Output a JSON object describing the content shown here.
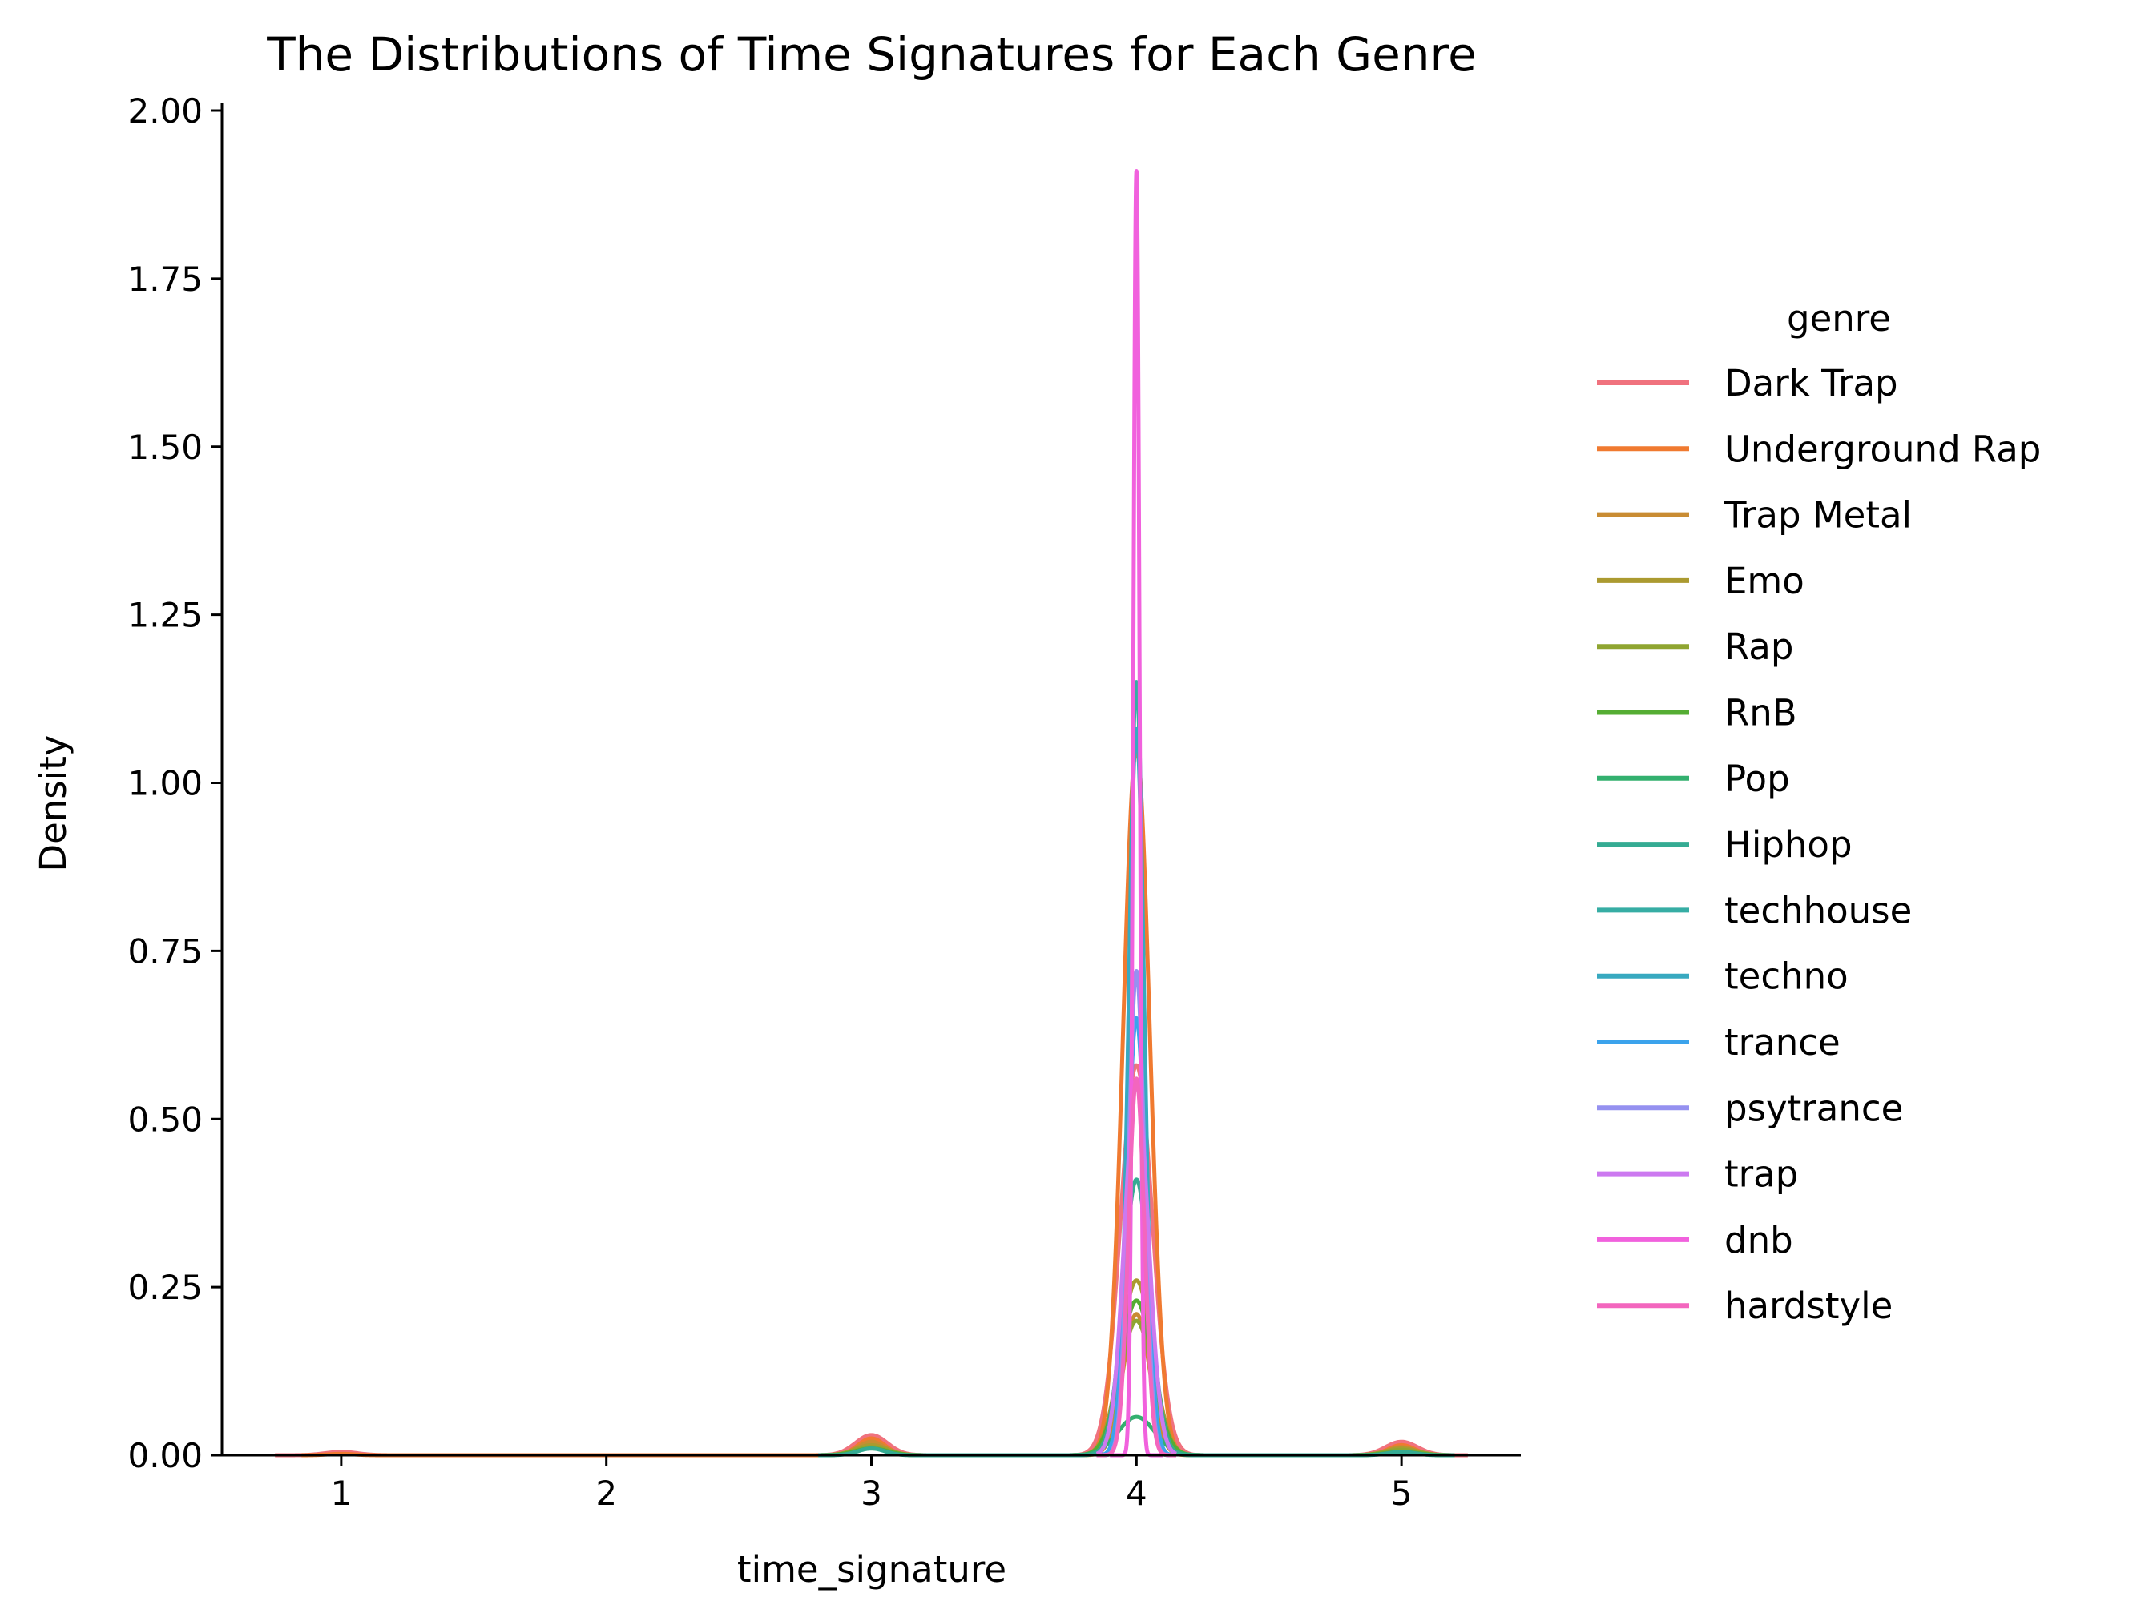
{
  "chart_data": {
    "type": "line",
    "title": "The Distributions of Time Signatures for Each Genre",
    "xlabel": "time_signature",
    "ylabel": "Density",
    "xlim": [
      0.55,
      5.45
    ],
    "ylim": [
      0,
      2.0
    ],
    "xticks": [
      1,
      2,
      3,
      4,
      5
    ],
    "xtick_labels": [
      "1",
      "2",
      "3",
      "4",
      "5"
    ],
    "yticks": [
      0,
      0.25,
      0.5,
      0.75,
      1.0,
      1.25,
      1.5,
      1.75,
      2.0
    ],
    "ytick_labels": [
      "0.00",
      "0.25",
      "0.50",
      "0.75",
      "1.00",
      "1.25",
      "1.50",
      "1.75",
      "2.00"
    ],
    "grid": false,
    "legend": {
      "title": "genre",
      "placement": "right"
    },
    "series": [
      {
        "name": "Dark Trap",
        "color": "#f0727e",
        "range": [
          0.75,
          5.25
        ],
        "peaks": [
          [
            1,
            0.005,
            0.06
          ],
          [
            3,
            0.03,
            0.06
          ],
          [
            4,
            0.58,
            0.06
          ],
          [
            5,
            0.02,
            0.06
          ]
        ]
      },
      {
        "name": "Underground Rap",
        "color": "#f07a30",
        "range": [
          0.85,
          5.2
        ],
        "peaks": [
          [
            1,
            0.002,
            0.05
          ],
          [
            3,
            0.025,
            0.05
          ],
          [
            4,
            1.05,
            0.05
          ],
          [
            5,
            0.015,
            0.05
          ]
        ]
      },
      {
        "name": "Trap Metal",
        "color": "#c98c33",
        "range": [
          2.8,
          5.2
        ],
        "peaks": [
          [
            3,
            0.02,
            0.05
          ],
          [
            4,
            0.21,
            0.05
          ],
          [
            5,
            0.012,
            0.05
          ]
        ]
      },
      {
        "name": "Emo",
        "color": "#ab9a30",
        "range": [
          2.8,
          5.2
        ],
        "peaks": [
          [
            3,
            0.015,
            0.06
          ],
          [
            4,
            0.26,
            0.06
          ],
          [
            5,
            0.01,
            0.06
          ]
        ]
      },
      {
        "name": "Rap",
        "color": "#8fa531",
        "range": [
          2.8,
          5.2
        ],
        "peaks": [
          [
            3,
            0.012,
            0.06
          ],
          [
            4,
            0.2,
            0.06
          ],
          [
            5,
            0.008,
            0.06
          ]
        ]
      },
      {
        "name": "RnB",
        "color": "#55ad33",
        "range": [
          2.8,
          5.2
        ],
        "peaks": [
          [
            3,
            0.01,
            0.06
          ],
          [
            4,
            0.23,
            0.06
          ],
          [
            5,
            0.005,
            0.06
          ]
        ]
      },
      {
        "name": "Pop",
        "color": "#33b06f",
        "range": [
          3.75,
          4.25
        ],
        "peaks": [
          [
            4,
            0.057,
            0.07
          ]
        ]
      },
      {
        "name": "Hiphop",
        "color": "#35ab93",
        "range": [
          2.8,
          5.2
        ],
        "peaks": [
          [
            3,
            0.01,
            0.05
          ],
          [
            4,
            0.41,
            0.05
          ],
          [
            5,
            0.005,
            0.05
          ]
        ]
      },
      {
        "name": "techhouse",
        "color": "#36ada4",
        "range": [
          3.85,
          4.15
        ],
        "peaks": [
          [
            4,
            1.15,
            0.028
          ]
        ]
      },
      {
        "name": "techno",
        "color": "#38a9c0",
        "range": [
          3.85,
          4.15
        ],
        "peaks": [
          [
            4,
            1.08,
            0.03
          ]
        ]
      },
      {
        "name": "trance",
        "color": "#3ba3ec",
        "range": [
          3.85,
          4.15
        ],
        "peaks": [
          [
            4,
            0.65,
            0.035
          ]
        ]
      },
      {
        "name": "psytrance",
        "color": "#9591f0",
        "range": [
          3.85,
          4.15
        ],
        "peaks": [
          [
            4,
            0.72,
            0.03
          ]
        ]
      },
      {
        "name": "trap",
        "color": "#cc79f0",
        "range": [
          3.85,
          4.15
        ],
        "peaks": [
          [
            4,
            0.55,
            0.045
          ]
        ]
      },
      {
        "name": "dnb",
        "color": "#f161dd",
        "range": [
          3.9,
          4.1
        ],
        "peaks": [
          [
            4,
            1.91,
            0.012
          ]
        ]
      },
      {
        "name": "hardstyle",
        "color": "#f366be",
        "range": [
          3.85,
          4.15
        ],
        "peaks": [
          [
            4,
            0.56,
            0.03
          ]
        ]
      }
    ]
  }
}
